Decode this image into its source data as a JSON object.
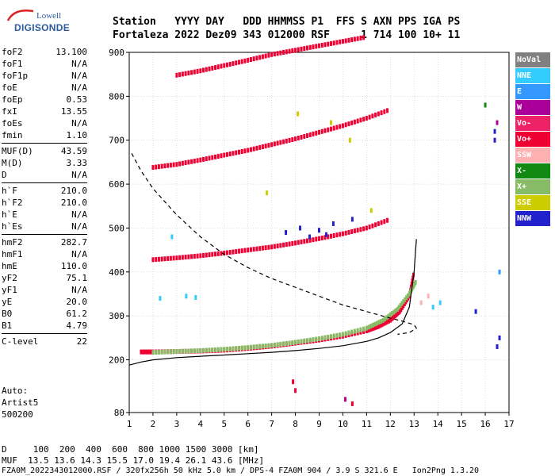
{
  "logo": {
    "top": "Lowell",
    "bottom": "DIGISONDE"
  },
  "header": {
    "line1": "Station   YYYY DAY   DDD HHMMSS P1  FFS S AXN PPS IGA PS",
    "line2": "Fortaleza 2022 Dez09 343 012000 RSF     1 714 100 10+ 11"
  },
  "params": [
    {
      "k": "foF2",
      "v": "13.100"
    },
    {
      "k": "foF1",
      "v": "N/A"
    },
    {
      "k": "foF1p",
      "v": "N/A"
    },
    {
      "k": "foE",
      "v": "N/A"
    },
    {
      "k": "foEp",
      "v": "0.53"
    },
    {
      "k": "fxI",
      "v": "13.55"
    },
    {
      "k": "foEs",
      "v": "N/A"
    },
    {
      "k": "fmin",
      "v": "1.10"
    },
    {
      "k": "MUF(D)",
      "v": "43.59",
      "div": true
    },
    {
      "k": "M(D)",
      "v": "3.33"
    },
    {
      "k": "D",
      "v": "N/A"
    },
    {
      "k": "h`F",
      "v": "210.0",
      "div": true
    },
    {
      "k": "h`F2",
      "v": "210.0"
    },
    {
      "k": "h`E",
      "v": "N/A"
    },
    {
      "k": "h`Es",
      "v": "N/A"
    },
    {
      "k": "hmF2",
      "v": "282.7",
      "div": true
    },
    {
      "k": "hmF1",
      "v": "N/A"
    },
    {
      "k": "hmE",
      "v": "110.0"
    },
    {
      "k": "yF2",
      "v": "75.1"
    },
    {
      "k": "yF1",
      "v": "N/A"
    },
    {
      "k": "yE",
      "v": "20.0"
    },
    {
      "k": "B0",
      "v": "61.2"
    },
    {
      "k": "B1",
      "v": "4.79"
    },
    {
      "k": "C-level",
      "v": "22",
      "div": true
    }
  ],
  "auto": {
    "line1": "Auto:",
    "line2": "Artist5",
    "line3": "500200"
  },
  "legend": [
    {
      "label": "NoVal",
      "color": "#808080"
    },
    {
      "label": "NNE",
      "color": "#33ccff"
    },
    {
      "label": "E",
      "color": "#3399ff"
    },
    {
      "label": "W",
      "color": "#aa0099"
    },
    {
      "label": "Vo-",
      "color": "#ee2266"
    },
    {
      "label": "Vo+",
      "color": "#ee0033"
    },
    {
      "label": "SSW",
      "color": "#ffb0b0"
    },
    {
      "label": "X-",
      "color": "#118811"
    },
    {
      "label": "X+",
      "color": "#88bb66"
    },
    {
      "label": "SSE",
      "color": "#cccc00"
    },
    {
      "label": "NNW",
      "color": "#2222cc"
    }
  ],
  "bottom": {
    "line1": "D     100  200  400  600  800 1000 1500 3000 [km]",
    "line2": "MUF  13.5 13.6 14.3 15.5 17.0 19.4 26.1 43.6 [MHz]",
    "line3": "FZA0M_2022343012000.RSF / 320fx256h 50 kHz 5.0 km / DPS-4 FZA0M 904 / 3.9 S 321.6 E   Ion2Png 1.3.20"
  },
  "chart_data": {
    "type": "scatter",
    "title": "",
    "xlabel": "",
    "ylabel": "",
    "xlim": [
      1,
      17
    ],
    "ylim": [
      80,
      900
    ],
    "xticks": [
      1,
      2,
      3,
      4,
      5,
      6,
      7,
      8,
      9,
      10,
      11,
      12,
      13,
      14,
      15,
      16,
      17
    ],
    "yticks": [
      80,
      200,
      300,
      400,
      500,
      600,
      700,
      800,
      900
    ],
    "series": [
      {
        "name": "Vo+",
        "color": "#ee0033",
        "x": [
          1.5,
          2,
          3,
          4,
          5,
          6,
          7,
          8,
          9,
          10,
          11,
          11.5,
          12,
          12.4,
          12.8,
          13.0
        ],
        "y": [
          218,
          218,
          219,
          220,
          222,
          226,
          231,
          238,
          245,
          254,
          266,
          276,
          290,
          310,
          345,
          400
        ]
      },
      {
        "name": "X+",
        "color": "#88bb66",
        "x": [
          2.0,
          3,
          4,
          5,
          6,
          7,
          8,
          9,
          10,
          11,
          11.7,
          12.3,
          12.8,
          13.1
        ],
        "y": [
          217,
          219,
          221,
          224,
          228,
          233,
          240,
          248,
          258,
          272,
          290,
          315,
          350,
          380
        ]
      },
      {
        "name": "Vo+",
        "color": "#ee0033",
        "x": [
          2,
          3,
          4,
          5,
          6,
          7,
          8,
          9,
          10,
          11,
          12
        ],
        "y": [
          428,
          432,
          437,
          443,
          450,
          457,
          466,
          476,
          487,
          500,
          520
        ]
      },
      {
        "name": "Vo+",
        "color": "#ee0033",
        "x": [
          2,
          3,
          4,
          5,
          6,
          7,
          8,
          9,
          10,
          11,
          12
        ],
        "y": [
          638,
          645,
          655,
          666,
          677,
          690,
          703,
          718,
          733,
          750,
          770
        ]
      },
      {
        "name": "Vo+",
        "color": "#ee0033",
        "x": [
          3,
          4,
          5,
          6,
          7,
          8,
          9,
          10,
          11
        ],
        "y": [
          848,
          858,
          870,
          882,
          895,
          905,
          915,
          925,
          935
        ]
      }
    ],
    "lines": [
      {
        "name": "profile",
        "x": [
          1,
          1.5,
          2,
          3,
          4,
          5,
          6,
          7,
          8,
          9,
          10,
          11,
          11.5,
          12,
          12.5,
          12.8,
          13.0,
          13.1
        ],
        "y": [
          188,
          195,
          200,
          205,
          208,
          211,
          214,
          217,
          221,
          226,
          232,
          242,
          250,
          262,
          282,
          320,
          400,
          475
        ]
      },
      {
        "name": "muf",
        "x": [
          1.1,
          1.5,
          2,
          3,
          4,
          5,
          6,
          7,
          8,
          9,
          10,
          11,
          12,
          12.5,
          13.0,
          13.1,
          12.8,
          12.3
        ],
        "y": [
          670,
          630,
          590,
          530,
          480,
          440,
          410,
          385,
          365,
          345,
          325,
          310,
          295,
          288,
          280,
          272,
          262,
          258
        ]
      }
    ]
  }
}
